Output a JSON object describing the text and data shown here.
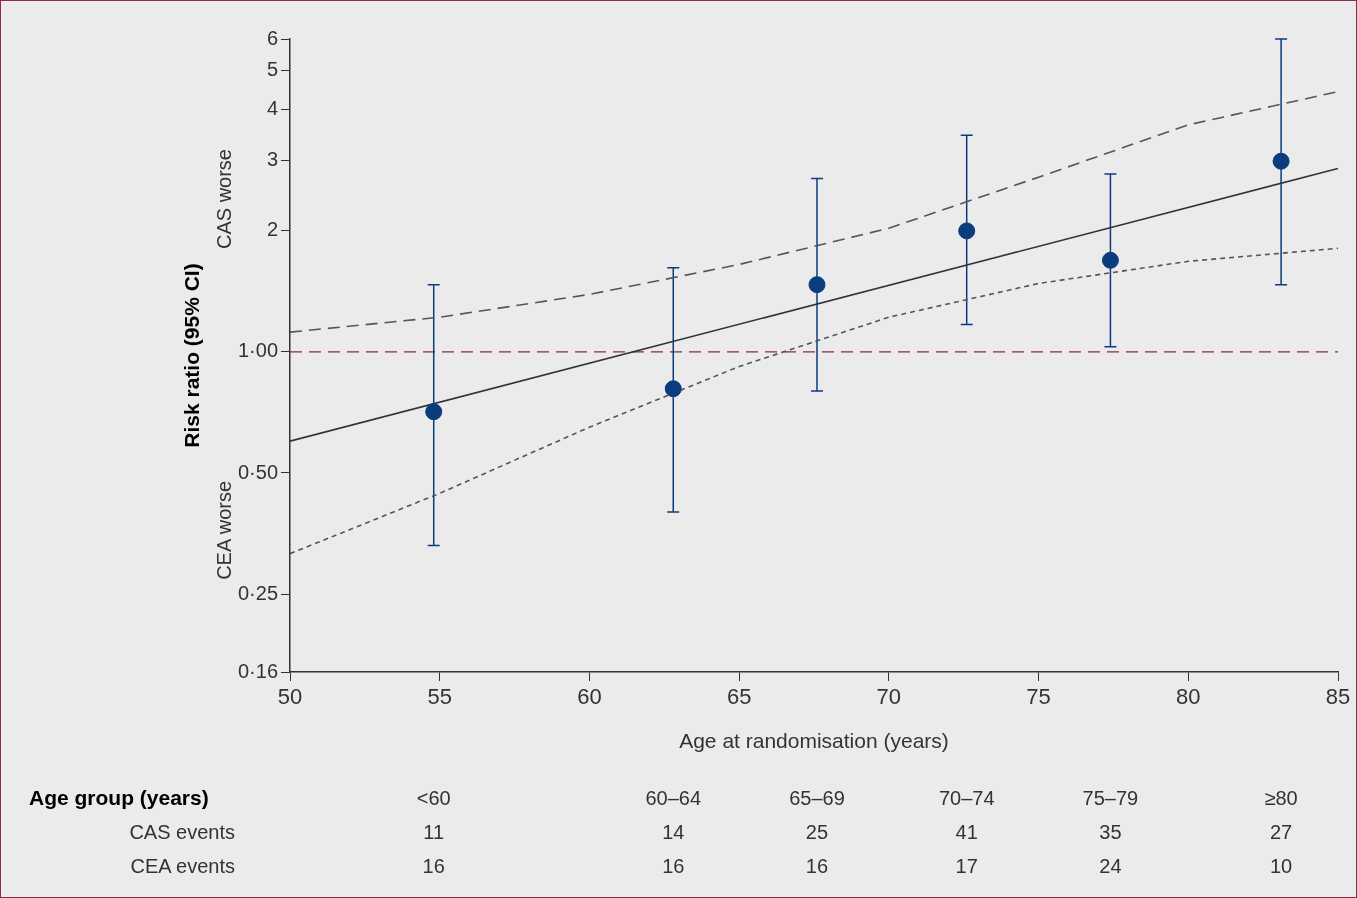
{
  "chart_data": {
    "type": "scatter",
    "xlabel": "Age at randomisation (years)",
    "ylabel": "Risk ratio (95% CI)",
    "x": [
      54.8,
      62.8,
      67.6,
      72.6,
      77.4,
      83.1
    ],
    "series": [
      {
        "color": "#0b3d7e",
        "values": [
          0.71,
          0.81,
          1.47,
          2.0,
          1.69,
          2.98
        ],
        "errors": [
          [
            0.33,
            1.47
          ],
          [
            0.4,
            1.62
          ],
          [
            0.8,
            2.7
          ],
          [
            1.17,
            3.46
          ],
          [
            1.03,
            2.77
          ],
          [
            1.47,
            6.0
          ]
        ],
        "marker": "circle"
      },
      {
        "type": "line",
        "color": "#333333",
        "x": [
          50,
          85
        ],
        "values": [
          0.6,
          2.86
        ],
        "line_style": "solid",
        "marker": "none"
      },
      {
        "type": "line",
        "color": "#555555",
        "x": [
          50,
          55,
          60,
          65,
          70,
          75,
          80,
          85
        ],
        "values": [
          1.12,
          1.22,
          1.39,
          1.65,
          2.03,
          2.72,
          3.67,
          4.44
        ],
        "line_style": "dashed",
        "marker": "none"
      },
      {
        "type": "line",
        "color": "#555555",
        "x": [
          50,
          55,
          60,
          65,
          70,
          75,
          80,
          85
        ],
        "values": [
          0.315,
          0.445,
          0.65,
          0.92,
          1.22,
          1.48,
          1.68,
          1.81
        ],
        "line_style": "dotted",
        "marker": "none"
      }
    ],
    "log": "y",
    "xlim": [
      50,
      85
    ],
    "xticks": [
      50,
      55,
      60,
      65,
      70,
      75,
      80,
      85
    ],
    "ylim": [
      0.16,
      6
    ],
    "yticks": [
      {
        "value": 0.16,
        "label": "0·16"
      },
      {
        "value": 0.25,
        "label": "0·25"
      },
      {
        "value": 0.5,
        "label": "0·50"
      },
      {
        "value": 1,
        "label": "1·00"
      },
      2,
      3,
      4,
      5,
      6
    ],
    "ref_lines": [
      {
        "axis": "y",
        "value": 1,
        "color": "#8b2a4a",
        "line_style": "dashed"
      }
    ],
    "grid": false,
    "legend": false,
    "annotations": [
      "CAS worse",
      "CEA worse",
      "Age group (years)",
      "CAS events",
      "CEA events",
      "<60",
      "60–64",
      "65–69",
      "70–74",
      "75–79",
      "≥80",
      "11",
      "14",
      "25",
      "41",
      "35",
      "27",
      "16",
      "16",
      "16",
      "17",
      "24",
      "10"
    ]
  }
}
